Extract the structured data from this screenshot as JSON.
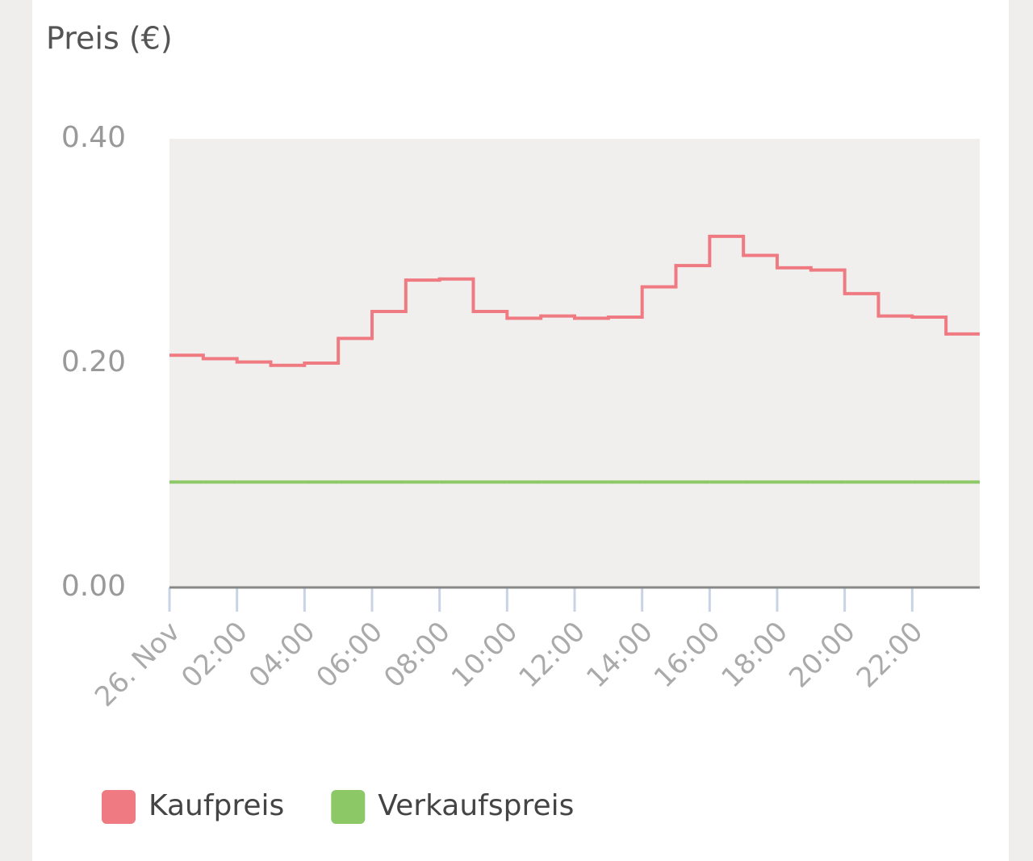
{
  "chart_data": {
    "type": "step-line",
    "title": "Preis (€)",
    "categories": [
      "26. Nov",
      null,
      "02:00",
      null,
      "04:00",
      null,
      "06:00",
      null,
      "08:00",
      null,
      "10:00",
      null,
      "12:00",
      null,
      "14:00",
      null,
      "16:00",
      null,
      "18:00",
      null,
      "20:00",
      null,
      "22:00",
      null
    ],
    "series": [
      {
        "name": "Kaufpreis",
        "color": "#f07a82",
        "values": [
          0.207,
          0.204,
          0.201,
          0.198,
          0.2,
          0.222,
          0.246,
          0.274,
          0.275,
          0.246,
          0.24,
          0.242,
          0.24,
          0.241,
          0.268,
          0.287,
          0.313,
          0.296,
          0.285,
          0.283,
          0.262,
          0.242,
          0.241,
          0.226
        ]
      },
      {
        "name": "Verkaufspreis",
        "color": "#8cc866",
        "values": [
          0.094,
          0.094,
          0.094,
          0.094,
          0.094,
          0.094,
          0.094,
          0.094,
          0.094,
          0.094,
          0.094,
          0.094,
          0.094,
          0.094,
          0.094,
          0.094,
          0.094,
          0.094,
          0.094,
          0.094,
          0.094,
          0.094,
          0.094,
          0.094
        ]
      }
    ],
    "ylim": [
      0,
      0.4
    ],
    "yticks": [
      {
        "value": 0,
        "label": "0.00"
      },
      {
        "value": 0.2,
        "label": "0.20"
      },
      {
        "value": 0.4,
        "label": "0.40"
      }
    ]
  }
}
